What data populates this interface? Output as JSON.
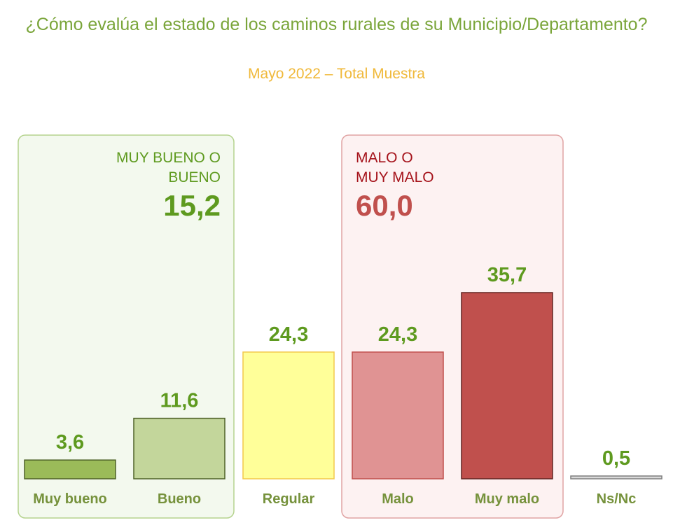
{
  "chart_data": {
    "type": "bar",
    "title": "¿Cómo evalúa el estado de los caminos rurales de su Municipio/Departamento?",
    "subtitle": "Mayo 2022 – Total Muestra",
    "categories": [
      "Muy bueno",
      "Bueno",
      "Regular",
      "Malo",
      "Muy malo",
      "Ns/Nc"
    ],
    "values": [
      3.6,
      11.6,
      24.3,
      24.3,
      35.7,
      0.5
    ],
    "value_labels": [
      "3,6",
      "11,6",
      "24,3",
      "24,3",
      "35,7",
      "0,5"
    ],
    "bar_colors": [
      "#9bbb59",
      "#c3d69b",
      "#ffff99",
      "#e09393",
      "#c0504d",
      "#d9d9d9"
    ],
    "bar_borders": [
      "#4f6228",
      "#4f6228",
      "#f2c84b",
      "#c0504d",
      "#632523",
      "#7f7f7f"
    ],
    "groups": [
      {
        "label_line1": "MUY BUENO O",
        "label_line2": "BUENO",
        "total": "15,2",
        "color": "#5e9a1f"
      },
      {
        "label_line1": "MALO O",
        "label_line2": "MUY MALO",
        "total": "60,0",
        "color": "#c0504d"
      }
    ],
    "ylim": [
      0,
      40
    ],
    "grid": false
  }
}
